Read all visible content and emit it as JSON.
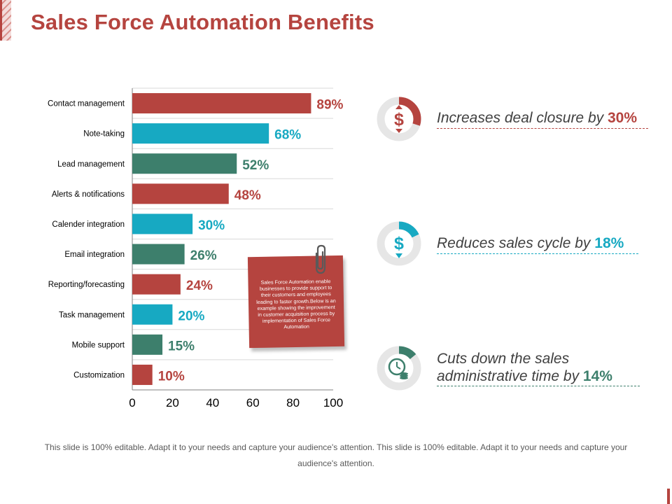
{
  "title": "Sales Force Automation Benefits",
  "colors": {
    "red": "#b5443f",
    "teal": "#17a9c2",
    "green": "#3d7f6c",
    "ring_track": "#e6e6e6"
  },
  "chart_data": {
    "type": "bar",
    "orientation": "horizontal",
    "categories": [
      "Contact management",
      "Note-taking",
      "Lead management",
      "Alerts & notifications",
      "Calender integration",
      "Email integration",
      "Reporting/forecasting",
      "Task management",
      "Mobile support",
      "Customization"
    ],
    "values": [
      89,
      68,
      52,
      48,
      30,
      26,
      24,
      20,
      15,
      10
    ],
    "value_labels": [
      "89%",
      "68%",
      "52%",
      "48%",
      "30%",
      "26%",
      "24%",
      "20%",
      "15%",
      "10%"
    ],
    "bar_colors": [
      "#b5443f",
      "#17a9c2",
      "#3d7f6c",
      "#b5443f",
      "#17a9c2",
      "#3d7f6c",
      "#b5443f",
      "#17a9c2",
      "#3d7f6c",
      "#b5443f"
    ],
    "xlim": [
      0,
      100
    ],
    "xticks": [
      0,
      20,
      40,
      60,
      80,
      100
    ],
    "grid": true
  },
  "note": {
    "text": "Sales Force Automation enable businesses to provide support to their customers and employees leading to faster growth.Below is an example showing the improvement in customer acquisition process by implementation of  Sales Force Automation"
  },
  "benefits": [
    {
      "text": "Increases deal closure by ",
      "pct": "30%",
      "value": 30,
      "color": "#b5443f",
      "icon": "dollar-arrows-icon"
    },
    {
      "text": "Reduces sales cycle by ",
      "pct": "18%",
      "value": 18,
      "color": "#17a9c2",
      "icon": "dollar-down-icon"
    },
    {
      "text_line1": "Cuts down the sales",
      "text_line2": "administrative time by ",
      "pct": "14%",
      "value": 14,
      "color": "#3d7f6c",
      "icon": "clock-coins-icon"
    }
  ],
  "footer": "This slide is 100% editable. Adapt it to your needs and capture your audience's attention. This slide is 100% editable. Adapt it to your needs and capture your audience's attention."
}
